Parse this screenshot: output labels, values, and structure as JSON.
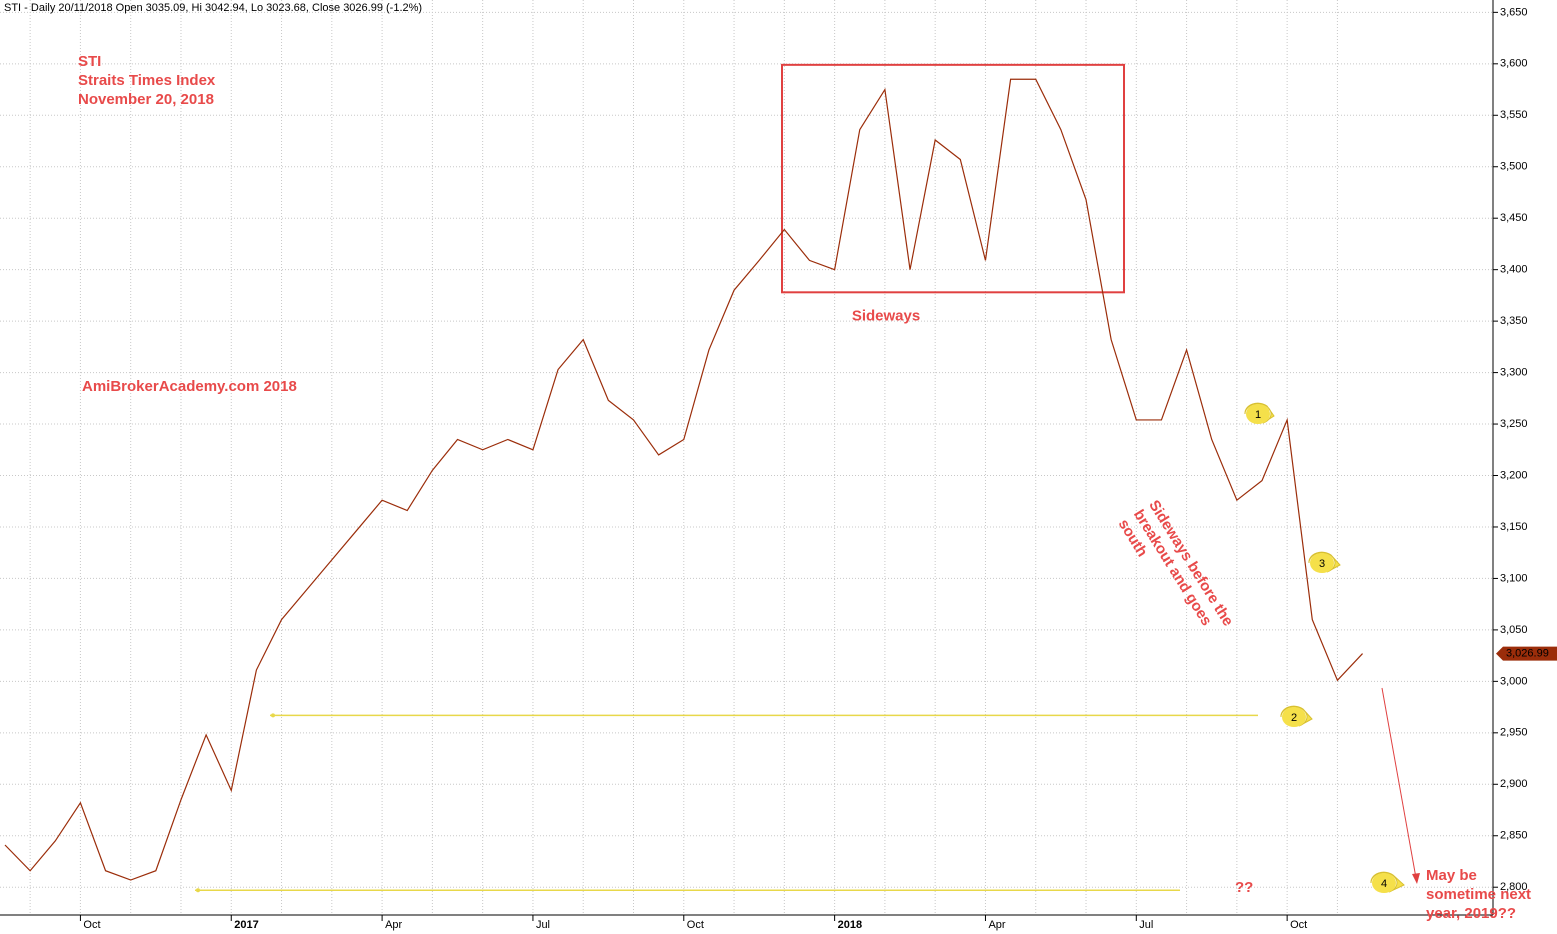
{
  "chart_data": {
    "type": "line",
    "header": "STI - Daily 20/11/2018 Open 3035.09, Hi 3042.94, Lo 3023.68, Close 3026.99 (-1.2%)",
    "title_lines": [
      "STI",
      "Straits Times Index",
      "November 20, 2018"
    ],
    "watermark": "AmiBrokerAcademy.com  2018",
    "box_label": "Sideways",
    "box_range": [
      3378,
      3599
    ],
    "rotated_note": [
      "Sideways before the",
      "breakout and goes",
      "south"
    ],
    "callouts": [
      "1",
      "2",
      "3",
      "4"
    ],
    "question": "??",
    "forecast_note": [
      "May be",
      "sometime next",
      "year, 2019??"
    ],
    "support_lines": [
      2967,
      2797
    ],
    "color": "#9b2d0a",
    "categories": [
      null,
      null,
      null,
      "Oct",
      null,
      null,
      null,
      null,
      null,
      "2017",
      null,
      null,
      null,
      null,
      null,
      "Apr",
      null,
      null,
      null,
      null,
      null,
      "Jul",
      null,
      null,
      null,
      null,
      null,
      "Oct",
      null,
      null,
      null,
      null,
      null,
      "2018",
      null,
      null,
      null,
      null,
      null,
      "Apr",
      null,
      null,
      null,
      null,
      null,
      "Jul",
      null,
      null,
      null,
      null,
      null,
      "Oct",
      null,
      null,
      null
    ],
    "values": [
      2841,
      2816,
      2845,
      2882,
      2816,
      2807,
      2816,
      2885,
      2948,
      2894,
      3011,
      3060,
      3089,
      3118,
      3147,
      3176,
      3166,
      3205,
      3235,
      3225,
      3235,
      3225,
      3303,
      3332,
      3273,
      3254,
      3220,
      3235,
      3322,
      3380,
      3409,
      3439,
      3409,
      3400,
      3536,
      3575,
      3400,
      3526,
      3507,
      3409,
      3585,
      3585,
      3536,
      3468,
      3332,
      3254,
      3254,
      3322,
      3235,
      3176,
      3195,
      3254,
      3060,
      3001,
      3026.99
    ],
    "last_label": {
      "value": 3026.99,
      "label": "3,026.99"
    },
    "ylim": [
      2773,
      3662
    ],
    "yticks": [
      {
        "value": 2800,
        "label": "2,800"
      },
      {
        "value": 2850,
        "label": "2,850"
      },
      {
        "value": 2900,
        "label": "2,900"
      },
      {
        "value": 2950,
        "label": "2,950"
      },
      {
        "value": 3000,
        "label": "3,000"
      },
      {
        "value": 3050,
        "label": "3,050"
      },
      {
        "value": 3100,
        "label": "3,100"
      },
      {
        "value": 3150,
        "label": "3,150"
      },
      {
        "value": 3200,
        "label": "3,200"
      },
      {
        "value": 3250,
        "label": "3,250"
      },
      {
        "value": 3300,
        "label": "3,300"
      },
      {
        "value": 3350,
        "label": "3,350"
      },
      {
        "value": 3400,
        "label": "3,400"
      },
      {
        "value": 3450,
        "label": "3,450"
      },
      {
        "value": 3500,
        "label": "3,500"
      },
      {
        "value": 3550,
        "label": "3,550"
      },
      {
        "value": 3600,
        "label": "3,600"
      },
      {
        "value": 3650,
        "label": "3,650"
      }
    ],
    "grid": true
  }
}
